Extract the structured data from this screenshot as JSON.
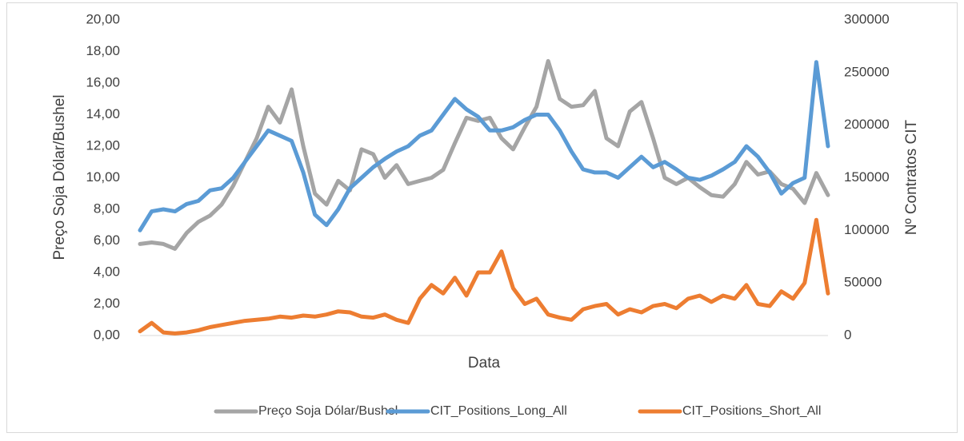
{
  "chart_data": {
    "type": "line",
    "x_label": "Data",
    "y_label": "Preço Soja Dólar/Bushel",
    "y2_label": "Nº Contratos CIT",
    "categories": [
      null,
      null,
      null,
      null,
      null,
      null,
      null,
      null,
      null,
      null,
      null,
      null,
      null,
      null,
      null,
      null,
      null,
      null,
      null,
      null,
      null,
      null,
      null,
      null,
      null,
      null,
      null,
      null,
      null,
      null,
      null,
      null,
      null,
      null,
      null,
      null,
      null,
      null,
      null,
      null,
      null,
      null,
      null,
      null,
      null,
      null,
      null,
      null,
      null,
      null,
      null,
      null,
      null,
      null,
      null,
      null,
      null,
      null,
      null,
      null
    ],
    "ylim": [
      0,
      20
    ],
    "yticks": [
      {
        "value": 0,
        "label": "0,00"
      },
      {
        "value": 2,
        "label": "2,00"
      },
      {
        "value": 4,
        "label": "4,00"
      },
      {
        "value": 6,
        "label": "6,00"
      },
      {
        "value": 8,
        "label": "8,00"
      },
      {
        "value": 10,
        "label": "10,00"
      },
      {
        "value": 12,
        "label": "12,00"
      },
      {
        "value": 14,
        "label": "14,00"
      },
      {
        "value": 16,
        "label": "16,00"
      },
      {
        "value": 18,
        "label": "18,00"
      },
      {
        "value": 20,
        "label": "20,00"
      }
    ],
    "y2lim": [
      0,
      300000
    ],
    "y2ticks": [
      0,
      50000,
      100000,
      150000,
      200000,
      250000,
      300000
    ],
    "grid": false,
    "legend": "bottom",
    "series": [
      {
        "name": "Preço Soja Dólar/Bushel",
        "color": "#a5a5a5",
        "values": [
          5.8,
          5.9,
          5.8,
          5.5,
          6.5,
          7.2,
          7.6,
          8.3,
          9.5,
          11.0,
          12.5,
          14.5,
          13.5,
          15.6,
          12.0,
          9.0,
          8.3,
          9.8,
          9.2,
          11.8,
          11.5,
          10.0,
          10.8,
          9.6,
          9.8,
          10.0,
          10.5,
          12.2,
          13.8,
          13.6,
          13.8,
          12.5,
          11.8,
          13.2,
          14.5,
          17.4,
          15.0,
          14.5,
          14.6,
          15.5,
          12.5,
          12.0,
          14.2,
          14.8,
          12.5,
          10.0,
          9.6,
          10.0,
          9.4,
          8.9,
          8.8,
          9.6,
          11.0,
          10.2,
          10.4,
          9.6,
          9.3,
          8.4,
          10.3,
          8.9
        ]
      },
      {
        "name": "CIT_Positions_Long_All",
        "color": "#5b9bd5",
        "axis": "y2",
        "values": [
          100000,
          118000,
          120000,
          118000,
          125000,
          128000,
          138000,
          140000,
          150000,
          165000,
          180000,
          195000,
          190000,
          185000,
          155000,
          115000,
          105000,
          120000,
          140000,
          150000,
          160000,
          168000,
          175000,
          180000,
          190000,
          195000,
          210000,
          225000,
          215000,
          208000,
          195000,
          195000,
          198000,
          205000,
          210000,
          210000,
          195000,
          175000,
          158000,
          155000,
          155000,
          150000,
          160000,
          170000,
          160000,
          165000,
          158000,
          150000,
          148000,
          152000,
          158000,
          165000,
          180000,
          170000,
          155000,
          135000,
          145000,
          150000,
          260000,
          180000
        ]
      },
      {
        "name": "CIT_Positions_Short_All",
        "color": "#ed7d31",
        "axis": "y2",
        "values": [
          4000,
          12000,
          3000,
          2000,
          3000,
          5000,
          8000,
          10000,
          12000,
          14000,
          15000,
          16000,
          18000,
          17000,
          19000,
          18000,
          20000,
          23000,
          22000,
          18000,
          17000,
          20000,
          15000,
          12000,
          35000,
          48000,
          40000,
          55000,
          38000,
          60000,
          60000,
          80000,
          45000,
          30000,
          35000,
          20000,
          17000,
          15000,
          25000,
          28000,
          30000,
          20000,
          25000,
          22000,
          28000,
          30000,
          26000,
          35000,
          38000,
          32000,
          38000,
          35000,
          48000,
          30000,
          28000,
          42000,
          35000,
          50000,
          110000,
          40000
        ]
      }
    ]
  }
}
